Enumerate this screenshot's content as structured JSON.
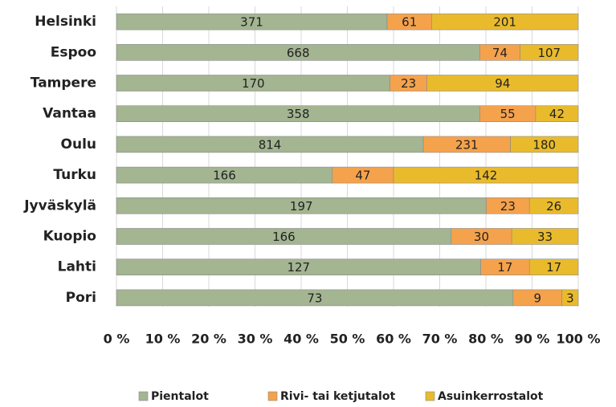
{
  "chart_data": {
    "type": "bar",
    "orientation": "horizontal",
    "stacking": "percent",
    "categories": [
      "Helsinki",
      "Espoo",
      "Tampere",
      "Vantaa",
      "Oulu",
      "Turku",
      "Jyväskylä",
      "Kuopio",
      "Lahti",
      "Pori"
    ],
    "series": [
      {
        "name": "Pientalot",
        "color": "#a3b591",
        "values": [
          371,
          668,
          170,
          358,
          814,
          166,
          197,
          166,
          127,
          73
        ]
      },
      {
        "name": "Rivi- tai ketjutalot",
        "color": "#f5a24c",
        "values": [
          61,
          74,
          23,
          55,
          231,
          47,
          23,
          30,
          17,
          9
        ]
      },
      {
        "name": "Asuinkerrostalot",
        "color": "#e9bb2c",
        "values": [
          201,
          107,
          94,
          42,
          180,
          142,
          26,
          33,
          17,
          3
        ]
      }
    ],
    "xlim": [
      0,
      100
    ],
    "xticks": [
      {
        "value": 0,
        "label": "0 %"
      },
      {
        "value": 10,
        "label": "10 %"
      },
      {
        "value": 20,
        "label": "20 %"
      },
      {
        "value": 30,
        "label": "30 %"
      },
      {
        "value": 40,
        "label": "40 %"
      },
      {
        "value": 50,
        "label": "50 %"
      },
      {
        "value": 60,
        "label": "60 %"
      },
      {
        "value": 70,
        "label": "70 %"
      },
      {
        "value": 80,
        "label": "80 %"
      },
      {
        "value": 90,
        "label": "90 %"
      },
      {
        "value": 100,
        "label": "100 %"
      }
    ],
    "grid": true,
    "legend": "bottom"
  }
}
